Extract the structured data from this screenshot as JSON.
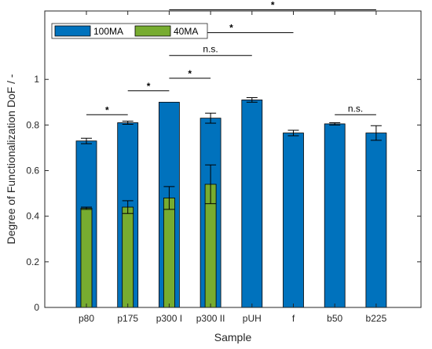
{
  "chart_data": {
    "type": "bar",
    "xlabel": "Sample",
    "ylabel": "Degree of Functionalization DoF / -",
    "ylim": [
      0,
      1.3
    ],
    "yticks": [
      0,
      0.2,
      0.4,
      0.6,
      0.8,
      1
    ],
    "ytick_labels": [
      "0",
      "0.2",
      "0.4",
      "0.6",
      "0.8",
      "1"
    ],
    "grid": false,
    "legend_position": "top-left",
    "categories": [
      "p80",
      "p175",
      "p300 I",
      "p300 II",
      "pUH",
      "f",
      "b50",
      "b225"
    ],
    "series": [
      {
        "name": "100MA",
        "color": "#0072BD",
        "values": [
          0.73,
          0.81,
          0.9,
          0.83,
          0.91,
          0.765,
          0.805,
          0.765
        ],
        "errors": [
          0.012,
          0.007,
          0,
          0.022,
          0.01,
          0.012,
          0.005,
          0.032
        ]
      },
      {
        "name": "40MA",
        "color": "#77AC30",
        "values": [
          0.435,
          0.44,
          0.48,
          0.54,
          null,
          null,
          null,
          null
        ],
        "errors": [
          0.005,
          0.028,
          0.05,
          0.085,
          null,
          null,
          null,
          null
        ]
      }
    ],
    "significance": [
      {
        "from": 0,
        "to": 1,
        "y": 0.845,
        "label": "*"
      },
      {
        "from": 1,
        "to": 2,
        "y": 0.95,
        "label": "*"
      },
      {
        "from": 2,
        "to": 3,
        "y": 1.005,
        "label": "*"
      },
      {
        "from": 2,
        "to": 4,
        "y": 1.105,
        "label": "n.s."
      },
      {
        "from": 2,
        "to": 5,
        "y": 1.205,
        "label": "*"
      },
      {
        "from": 2,
        "to": 7,
        "y": 1.305,
        "label": "*"
      },
      {
        "from": 6,
        "to": 7,
        "y": 0.845,
        "label": "n.s."
      }
    ]
  }
}
